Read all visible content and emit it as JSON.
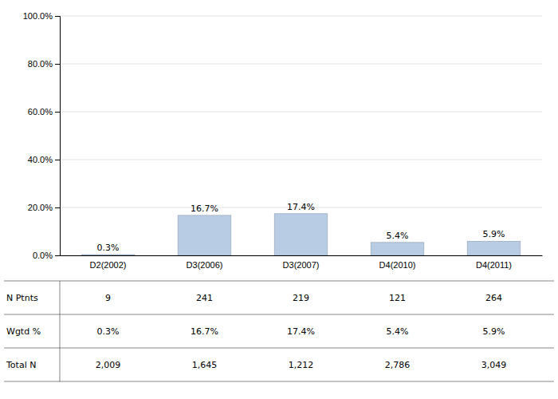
{
  "chart_data": {
    "type": "bar",
    "categories": [
      "D2(2002)",
      "D3(2006)",
      "D3(2007)",
      "D4(2010)",
      "D4(2011)"
    ],
    "values": [
      0.3,
      16.7,
      17.4,
      5.4,
      5.9
    ],
    "value_labels": [
      "0.3%",
      "16.7%",
      "17.4%",
      "5.4%",
      "5.9%"
    ],
    "data_labels": true,
    "color": "#b8cce4",
    "ylim": [
      0,
      100
    ],
    "yticks": [
      {
        "value": 0,
        "label": "0.0%"
      },
      {
        "value": 20,
        "label": "20.0%"
      },
      {
        "value": 40,
        "label": "40.0%"
      },
      {
        "value": 60,
        "label": "60.0%"
      },
      {
        "value": 80,
        "label": "80.0%"
      },
      {
        "value": 100,
        "label": "100.0%"
      }
    ],
    "grid": true,
    "table": {
      "row_labels": [
        "N Ptnts",
        "Wgtd %",
        "Total N"
      ],
      "rows": [
        [
          "9",
          "241",
          "219",
          "121",
          "264"
        ],
        [
          "0.3%",
          "16.7%",
          "17.4%",
          "5.4%",
          "5.9%"
        ],
        [
          "2,009",
          "1,645",
          "1,212",
          "2,786",
          "3,049"
        ]
      ]
    }
  }
}
